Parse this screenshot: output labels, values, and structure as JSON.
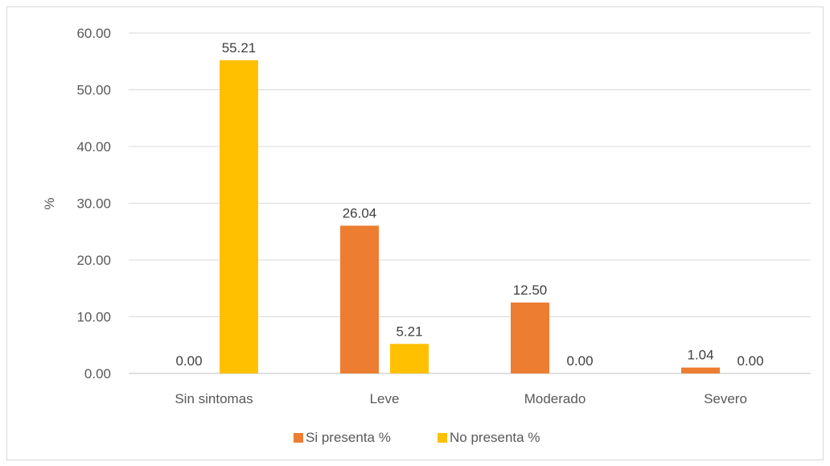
{
  "chart_data": {
    "type": "bar",
    "ylabel": "%",
    "ylim": [
      0,
      60
    ],
    "yticks": [
      "0.00",
      "10.00",
      "20.00",
      "30.00",
      "40.00",
      "50.00",
      "60.00"
    ],
    "categories": [
      "Sin sintomas",
      "Leve",
      "Moderado",
      "Severo"
    ],
    "series": [
      {
        "name": "Si presenta %",
        "color": "#ED7D31",
        "values": [
          0.0,
          26.04,
          12.5,
          1.04
        ],
        "labels": [
          "0.00",
          "26.04",
          "12.50",
          "1.04"
        ]
      },
      {
        "name": "No presenta %",
        "color": "#FFC000",
        "values": [
          55.21,
          5.21,
          0.0,
          0.0
        ],
        "labels": [
          "55.21",
          "5.21",
          "0.00",
          "0.00"
        ]
      }
    ],
    "grid": true,
    "legend_position": "bottom",
    "gridline_color": "#d9d9d9",
    "axis_color": "#bfbfbf"
  }
}
